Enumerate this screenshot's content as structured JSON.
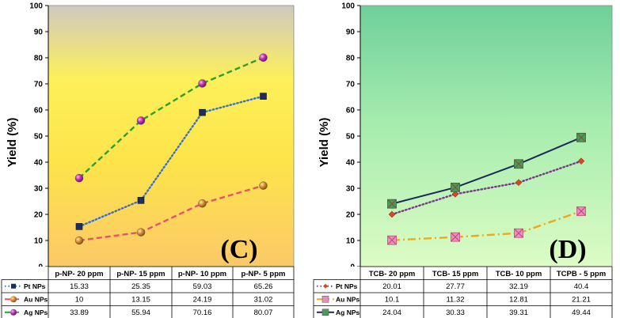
{
  "chart_data": [
    {
      "type": "line",
      "panel_label": "(C)",
      "ylabel": "Yield (%)",
      "ylim": [
        0,
        100
      ],
      "yticks": [
        0,
        10,
        20,
        30,
        40,
        50,
        60,
        70,
        80,
        90,
        100
      ],
      "categories": [
        "p-NP- 20 ppm",
        "p-NP- 15 ppm",
        "p-NP- 10 ppm",
        "p-NP- 5 ppm"
      ],
      "series": [
        {
          "name": "Pt NPs",
          "values": [
            15.33,
            25.35,
            59.03,
            65.26
          ],
          "display": [
            "15.33",
            "25.35",
            "59.03",
            "65.26"
          ],
          "color": "#3a6fd0",
          "dash": "dotted",
          "marker": "square",
          "marker_color": "#1c2e5a"
        },
        {
          "name": "Au NPs",
          "values": [
            10,
            13.15,
            24.19,
            31.02
          ],
          "display": [
            "10",
            "13.15",
            "24.19",
            "31.02"
          ],
          "color": "#e8506e",
          "dash": "dashed",
          "marker": "ball",
          "marker_color": "#d48a2a"
        },
        {
          "name": "Ag NPs",
          "values": [
            33.89,
            55.94,
            70.16,
            80.07
          ],
          "display": [
            "33.89",
            "55.94",
            "70.16",
            "80.07"
          ],
          "color": "#2aa034",
          "dash": "dashed",
          "marker": "ball",
          "marker_color": "#c02ab0"
        }
      ],
      "background": {
        "top": "#cfc9c0",
        "bottom": "#fbcc66",
        "mid": "#fde84a"
      },
      "grid": false,
      "legend": "data-table"
    },
    {
      "type": "line",
      "panel_label": "(D)",
      "ylabel": "Yield (%)",
      "ylim": [
        0,
        100
      ],
      "yticks": [
        0,
        10,
        20,
        30,
        40,
        50,
        60,
        70,
        80,
        90,
        100
      ],
      "categories": [
        "TCB- 20 ppm",
        "TCB- 15 ppm",
        "TCB- 10 ppm",
        "TCPB - 5 ppm"
      ],
      "series": [
        {
          "name": "Pt NPs",
          "values": [
            20.01,
            27.77,
            32.19,
            40.4
          ],
          "display": [
            "20.01",
            "27.77",
            "32.19",
            "40.4"
          ],
          "color": "#7a3a8a",
          "dash": "dotted",
          "marker": "diamond",
          "marker_color": "#d84820"
        },
        {
          "name": "Au NPs",
          "values": [
            10.1,
            11.32,
            12.81,
            21.21
          ],
          "display": [
            "10.1",
            "11.32",
            "12.81",
            "21.21"
          ],
          "color": "#f0a818",
          "dash": "dashdot",
          "marker": "box-x",
          "marker_color": "#e890b8"
        },
        {
          "name": "Ag NPs",
          "values": [
            24.04,
            30.33,
            39.31,
            49.44
          ],
          "display": [
            "24.04",
            "30.33",
            "39.31",
            "49.44"
          ],
          "color": "#1a2a5a",
          "dash": "solid",
          "marker": "box-x",
          "marker_color": "#4a9a5a"
        }
      ],
      "background": {
        "top": "#6fd09a",
        "bottom": "#d8fbc0"
      },
      "grid": false,
      "legend": "data-table"
    }
  ]
}
